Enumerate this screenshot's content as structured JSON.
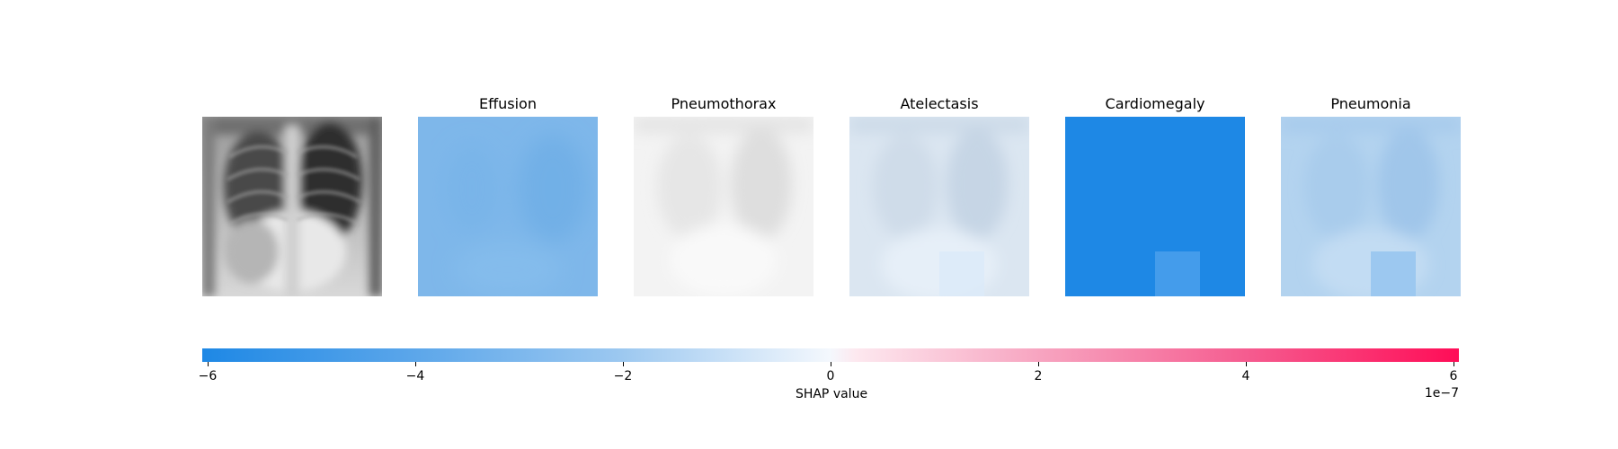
{
  "chart_data": {
    "type": "heatmap",
    "description_free": true,
    "panels": [
      {
        "title": "",
        "kind": "input-image",
        "mean_shap": null
      },
      {
        "title": "Effusion",
        "kind": "shap-map",
        "mean_shap": -3.2e-07,
        "patch_shap": null
      },
      {
        "title": "Pneumothorax",
        "kind": "shap-map",
        "mean_shap": 0.0,
        "patch_shap": null
      },
      {
        "title": "Atelectasis",
        "kind": "shap-map",
        "mean_shap": -8e-08,
        "patch_shap": -1.1e-07
      },
      {
        "title": "Cardiomegaly",
        "kind": "shap-map",
        "mean_shap": -6e-07,
        "patch_shap": -4.6e-07
      },
      {
        "title": "Pneumonia",
        "kind": "shap-map",
        "mean_shap": -2e-07,
        "patch_shap": -3e-07
      }
    ],
    "colorbar": {
      "label": "SHAP value",
      "offset_text": "1e−7",
      "range": [
        -6.05,
        6.05
      ],
      "ticks": [
        -6,
        -4,
        -2,
        0,
        2,
        4,
        6
      ],
      "tick_labels": [
        "−6",
        "−4",
        "−2",
        "0",
        "2",
        "4",
        "6"
      ],
      "colors": {
        "negative": "#1e88e5",
        "zero": "#ffffff",
        "positive": "#ff0d57"
      }
    }
  }
}
